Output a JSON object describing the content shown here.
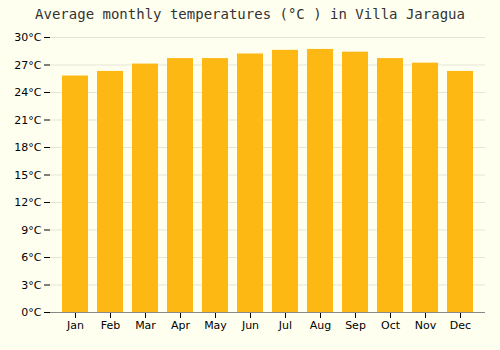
{
  "chart_data": {
    "type": "bar",
    "title": "Average monthly temperatures (°C ) in Villa Jaragua",
    "categories": [
      "Jan",
      "Feb",
      "Mar",
      "Apr",
      "May",
      "Jun",
      "Jul",
      "Aug",
      "Sep",
      "Oct",
      "Nov",
      "Dec"
    ],
    "values": [
      25.8,
      26.3,
      27.1,
      27.7,
      27.7,
      28.2,
      28.6,
      28.7,
      28.4,
      27.7,
      27.2,
      26.3
    ],
    "color": "#FDB813",
    "ylim": [
      0,
      30
    ],
    "yticks": [
      {
        "value": 0,
        "label": "0°C"
      },
      {
        "value": 3,
        "label": "3°C"
      },
      {
        "value": 6,
        "label": "6°C"
      },
      {
        "value": 9,
        "label": "9°C"
      },
      {
        "value": 12,
        "label": "12°C"
      },
      {
        "value": 15,
        "label": "15°C"
      },
      {
        "value": 18,
        "label": "18°C"
      },
      {
        "value": 21,
        "label": "21°C"
      },
      {
        "value": 24,
        "label": "24°C"
      },
      {
        "value": 27,
        "label": "27°C"
      },
      {
        "value": 30,
        "label": "30°C"
      }
    ],
    "grid": true
  }
}
